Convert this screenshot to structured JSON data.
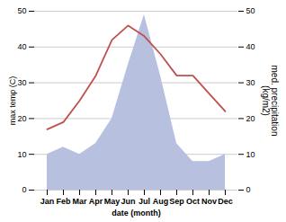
{
  "chart_data": {
    "type": "line",
    "categories": [
      "Jan",
      "Feb",
      "Mar",
      "Apr",
      "May",
      "Jun",
      "Jul",
      "Aug",
      "Sep",
      "Oct",
      "Nov",
      "Dec"
    ],
    "series": [
      {
        "type": "area",
        "axis": "y2",
        "color": "#b8c0e0",
        "values": [
          10,
          12,
          10,
          13,
          20,
          35,
          49,
          32,
          13,
          8,
          8,
          10
        ]
      },
      {
        "type": "line",
        "color": "#c0504d",
        "values": [
          17,
          19,
          25,
          32,
          42,
          46,
          43,
          38,
          32,
          32,
          27,
          22
        ]
      }
    ],
    "xlabel": "date (month)",
    "ylabel": "max temp (C)",
    "y2label": "med. precipitation\n(kg/m2)",
    "ylim": [
      0,
      50
    ],
    "yticks": [
      0,
      10,
      20,
      30,
      40,
      50
    ],
    "y2lim": [
      0,
      50
    ],
    "y2ticks": [
      0,
      10,
      20,
      30,
      40,
      50
    ],
    "grid": true
  }
}
